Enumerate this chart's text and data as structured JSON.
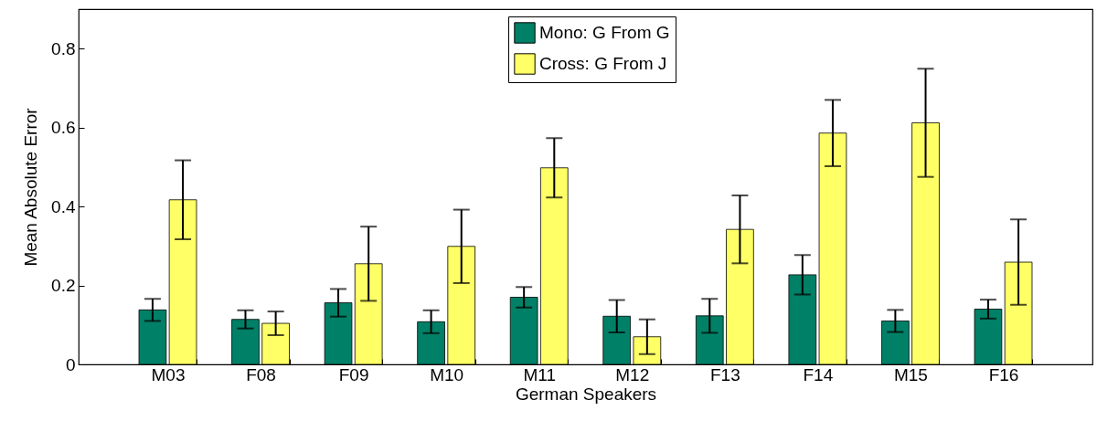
{
  "chart_data": {
    "type": "bar",
    "xlabel": "German Speakers",
    "ylabel": "Mean Absolute Error",
    "categories": [
      "M03",
      "F08",
      "F09",
      "M10",
      "M11",
      "M12",
      "F13",
      "F14",
      "M15",
      "F16"
    ],
    "series": [
      {
        "name": "Mono: G From G",
        "color": "#008066",
        "values": [
          0.138,
          0.114,
          0.156,
          0.108,
          0.17,
          0.122,
          0.123,
          0.227,
          0.11,
          0.14
        ],
        "errors": [
          0.028,
          0.023,
          0.035,
          0.029,
          0.026,
          0.041,
          0.043,
          0.05,
          0.028,
          0.024
        ]
      },
      {
        "name": "Cross: G From J",
        "color": "#ffff66",
        "values": [
          0.417,
          0.104,
          0.255,
          0.299,
          0.498,
          0.07,
          0.342,
          0.586,
          0.612,
          0.259
        ],
        "errors": [
          0.1,
          0.03,
          0.094,
          0.093,
          0.075,
          0.044,
          0.086,
          0.084,
          0.137,
          0.108
        ]
      }
    ],
    "ylim": [
      0,
      0.9
    ],
    "yticks": [
      0,
      0.2,
      0.4,
      0.6,
      0.8
    ],
    "grid": false,
    "legend": "top"
  }
}
